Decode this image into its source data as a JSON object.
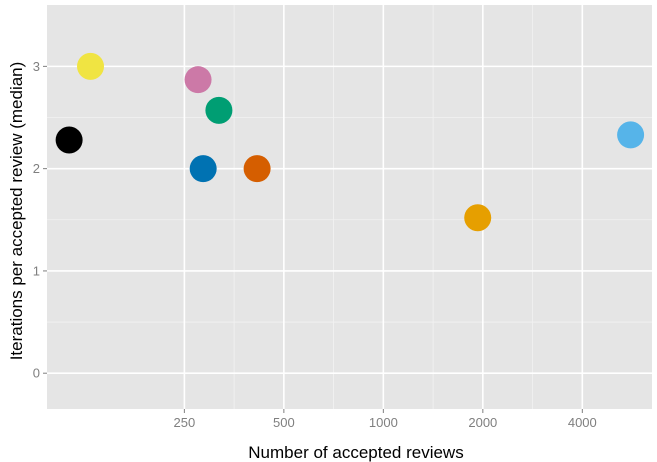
{
  "chart_data": {
    "type": "scatter",
    "xlabel": "Number of accepted reviews",
    "ylabel": "Iterations per accepted review (median)",
    "x_scale": "log2",
    "xlim": [
      96,
      6500
    ],
    "ylim": [
      -0.35,
      3.6
    ],
    "x_ticks": [
      250,
      500,
      1000,
      2000,
      4000
    ],
    "x_tick_labels": [
      "250",
      "500",
      "1000",
      "2000",
      "4000"
    ],
    "y_ticks": [
      0,
      1,
      2,
      3
    ],
    "y_tick_labels": [
      "0",
      "1",
      "2",
      "3"
    ],
    "grid": true,
    "legend": "none",
    "points": [
      {
        "x": 112,
        "y": 2.28,
        "color": "#000000"
      },
      {
        "x": 130,
        "y": 3.0,
        "color": "#f0e442"
      },
      {
        "x": 275,
        "y": 2.87,
        "color": "#cc79a7"
      },
      {
        "x": 285,
        "y": 2.0,
        "color": "#0072b2"
      },
      {
        "x": 318,
        "y": 2.57,
        "color": "#009e73"
      },
      {
        "x": 415,
        "y": 2.0,
        "color": "#d55e00"
      },
      {
        "x": 1930,
        "y": 1.52,
        "color": "#e69f00"
      },
      {
        "x": 5600,
        "y": 2.33,
        "color": "#56b4e9"
      }
    ]
  }
}
